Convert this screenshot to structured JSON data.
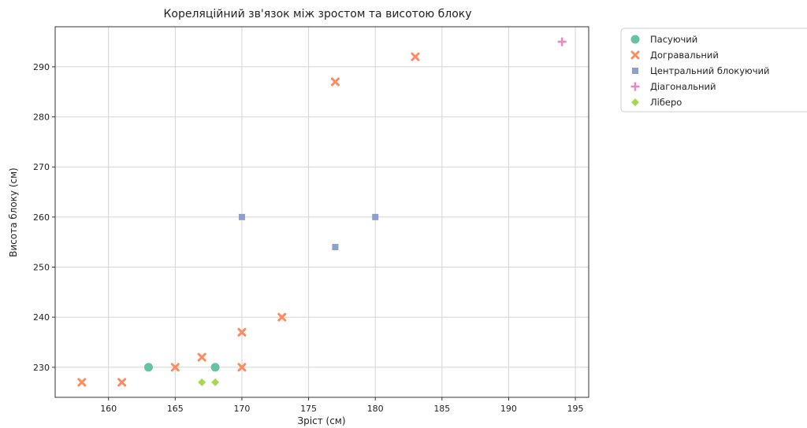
{
  "chart_data": {
    "type": "scatter",
    "title": "Кореляційний зв'язок між зростом та висотою блоку",
    "xlabel": "Зріст (см)",
    "ylabel": "Висота блоку (см)",
    "xlim": [
      156,
      196
    ],
    "ylim": [
      224,
      298
    ],
    "xticks": [
      160,
      165,
      170,
      175,
      180,
      185,
      190,
      195
    ],
    "yticks": [
      230,
      240,
      250,
      260,
      270,
      280,
      290
    ],
    "grid": true,
    "legend_position": "outside-top-right",
    "series": [
      {
        "name": "Пасуючий",
        "marker": "circle",
        "color": "#66c2a5",
        "points": [
          [
            163,
            230
          ],
          [
            168,
            230
          ]
        ]
      },
      {
        "name": "Догравальний",
        "marker": "x",
        "color": "#fc8d62",
        "points": [
          [
            158,
            227
          ],
          [
            161,
            227
          ],
          [
            165,
            230
          ],
          [
            167,
            232
          ],
          [
            170,
            230
          ],
          [
            170,
            237
          ],
          [
            173,
            240
          ],
          [
            177,
            287
          ],
          [
            183,
            292
          ]
        ]
      },
      {
        "name": "Центральний блокуючий",
        "marker": "square",
        "color": "#8da0cb",
        "points": [
          [
            170,
            260
          ],
          [
            177,
            254
          ],
          [
            180,
            260
          ]
        ]
      },
      {
        "name": "Діагональний",
        "marker": "plus",
        "color": "#e78ac3",
        "points": [
          [
            194,
            295
          ]
        ]
      },
      {
        "name": "Ліберо",
        "marker": "diamond",
        "color": "#a6d854",
        "points": [
          [
            167,
            227
          ],
          [
            168,
            227
          ]
        ]
      }
    ]
  }
}
